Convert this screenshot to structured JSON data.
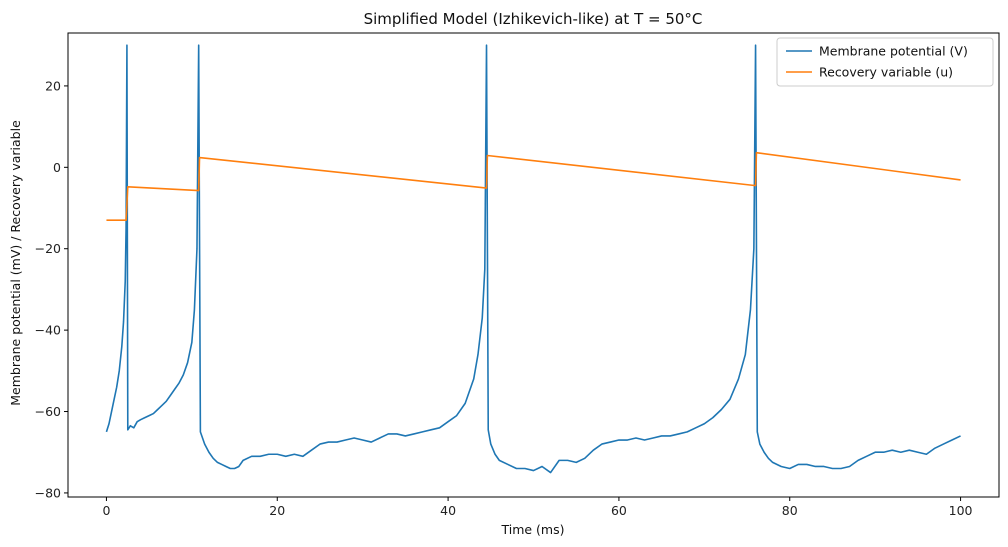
{
  "chart_data": {
    "type": "line",
    "title": "Simplified Model (Izhikevich-like) at T = 50°C",
    "xlabel": "Time (ms)",
    "ylabel": "Membrane potential (mV) / Recovery variable",
    "xlim": [
      -4.5,
      104.5
    ],
    "ylim": [
      -81,
      33
    ],
    "xticks": [
      0,
      20,
      40,
      60,
      80,
      100
    ],
    "yticks": [
      -80,
      -60,
      -40,
      -20,
      0,
      20
    ],
    "grid": false,
    "legend_position": "top-right",
    "series": [
      {
        "name": "Membrane potential (V)",
        "color": "#1f77b4",
        "points": [
          [
            0,
            -65
          ],
          [
            0.3,
            -63
          ],
          [
            0.6,
            -60
          ],
          [
            0.9,
            -57
          ],
          [
            1.2,
            -54
          ],
          [
            1.5,
            -50
          ],
          [
            1.8,
            -44
          ],
          [
            2.0,
            -38
          ],
          [
            2.2,
            -28
          ],
          [
            2.3,
            -15
          ],
          [
            2.4,
            30
          ],
          [
            2.5,
            -64.5
          ],
          [
            2.8,
            -63.5
          ],
          [
            3.2,
            -64
          ],
          [
            3.6,
            -62.5
          ],
          [
            4.0,
            -62
          ],
          [
            4.5,
            -61.5
          ],
          [
            5.0,
            -61
          ],
          [
            5.5,
            -60.5
          ],
          [
            6.0,
            -59.5
          ],
          [
            6.5,
            -58.5
          ],
          [
            7.0,
            -57.5
          ],
          [
            7.5,
            -56
          ],
          [
            8.0,
            -54.5
          ],
          [
            8.5,
            -53
          ],
          [
            9.0,
            -51
          ],
          [
            9.5,
            -48
          ],
          [
            10.0,
            -43
          ],
          [
            10.3,
            -35
          ],
          [
            10.6,
            -20
          ],
          [
            10.8,
            30
          ],
          [
            11.0,
            -65
          ],
          [
            11.5,
            -68
          ],
          [
            12.0,
            -70
          ],
          [
            12.5,
            -71.5
          ],
          [
            13.0,
            -72.5
          ],
          [
            13.5,
            -73
          ],
          [
            14.0,
            -73.5
          ],
          [
            14.5,
            -74
          ],
          [
            15.0,
            -74
          ],
          [
            15.5,
            -73.5
          ],
          [
            16.0,
            -72
          ],
          [
            17.0,
            -71
          ],
          [
            18.0,
            -71
          ],
          [
            19.0,
            -70.5
          ],
          [
            20.0,
            -70.5
          ],
          [
            21.0,
            -71
          ],
          [
            22.0,
            -70.5
          ],
          [
            23.0,
            -71
          ],
          [
            24.0,
            -69.5
          ],
          [
            25.0,
            -68
          ],
          [
            26.0,
            -67.5
          ],
          [
            27.0,
            -67.5
          ],
          [
            28.0,
            -67
          ],
          [
            29.0,
            -66.5
          ],
          [
            30.0,
            -67
          ],
          [
            31.0,
            -67.5
          ],
          [
            32.0,
            -66.5
          ],
          [
            33.0,
            -65.5
          ],
          [
            34.0,
            -65.5
          ],
          [
            35.0,
            -66
          ],
          [
            36.0,
            -65.5
          ],
          [
            37.0,
            -65
          ],
          [
            38.0,
            -64.5
          ],
          [
            39.0,
            -64
          ],
          [
            40.0,
            -62.5
          ],
          [
            41.0,
            -61
          ],
          [
            42.0,
            -58
          ],
          [
            43.0,
            -52
          ],
          [
            43.5,
            -46
          ],
          [
            44.0,
            -37
          ],
          [
            44.3,
            -25
          ],
          [
            44.5,
            30
          ],
          [
            44.7,
            -64.5
          ],
          [
            45.0,
            -68
          ],
          [
            45.5,
            -70.5
          ],
          [
            46.0,
            -72
          ],
          [
            47.0,
            -73
          ],
          [
            48.0,
            -74
          ],
          [
            49.0,
            -74
          ],
          [
            50.0,
            -74.5
          ],
          [
            51.0,
            -73.5
          ],
          [
            52.0,
            -75
          ],
          [
            53.0,
            -72
          ],
          [
            54.0,
            -72
          ],
          [
            55.0,
            -72.5
          ],
          [
            56.0,
            -71.5
          ],
          [
            57.0,
            -69.5
          ],
          [
            58.0,
            -68
          ],
          [
            59.0,
            -67.5
          ],
          [
            60.0,
            -67
          ],
          [
            61.0,
            -67
          ],
          [
            62.0,
            -66.5
          ],
          [
            63.0,
            -67
          ],
          [
            64.0,
            -66.5
          ],
          [
            65.0,
            -66
          ],
          [
            66.0,
            -66
          ],
          [
            67.0,
            -65.5
          ],
          [
            68.0,
            -65
          ],
          [
            69.0,
            -64
          ],
          [
            70.0,
            -63
          ],
          [
            71.0,
            -61.5
          ],
          [
            72.0,
            -59.5
          ],
          [
            73.0,
            -57
          ],
          [
            74.0,
            -52
          ],
          [
            74.8,
            -46
          ],
          [
            75.4,
            -35
          ],
          [
            75.8,
            -20
          ],
          [
            76.0,
            30
          ],
          [
            76.2,
            -65
          ],
          [
            76.5,
            -68
          ],
          [
            77.0,
            -70
          ],
          [
            77.5,
            -71.5
          ],
          [
            78.0,
            -72.5
          ],
          [
            79.0,
            -73.5
          ],
          [
            80.0,
            -74
          ],
          [
            81.0,
            -73
          ],
          [
            82.0,
            -73
          ],
          [
            83.0,
            -73.5
          ],
          [
            84.0,
            -73.5
          ],
          [
            85.0,
            -74
          ],
          [
            86.0,
            -74
          ],
          [
            87.0,
            -73.5
          ],
          [
            88.0,
            -72
          ],
          [
            89.0,
            -71
          ],
          [
            90.0,
            -70
          ],
          [
            91.0,
            -70
          ],
          [
            92.0,
            -69.5
          ],
          [
            93.0,
            -70
          ],
          [
            94.0,
            -69.5
          ],
          [
            95.0,
            -70
          ],
          [
            96.0,
            -70.5
          ],
          [
            97.0,
            -69
          ],
          [
            98.0,
            -68
          ],
          [
            99.0,
            -67
          ],
          [
            100.0,
            -66
          ]
        ]
      },
      {
        "name": "Recovery variable (u)",
        "color": "#ff7f0e",
        "points": [
          [
            0,
            -13
          ],
          [
            2.3,
            -13
          ],
          [
            2.5,
            -4.8
          ],
          [
            10.8,
            -5.7
          ],
          [
            10.9,
            2.4
          ],
          [
            44.5,
            -5.1
          ],
          [
            44.6,
            2.9
          ],
          [
            76.0,
            -4.5
          ],
          [
            76.1,
            3.6
          ],
          [
            100.0,
            -3.1
          ]
        ]
      }
    ]
  }
}
